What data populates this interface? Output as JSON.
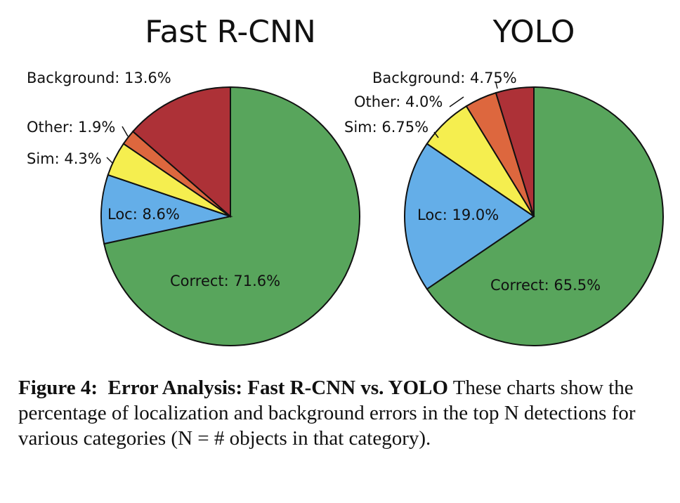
{
  "chart_data": [
    {
      "type": "pie",
      "title": "Fast R-CNN",
      "slices": [
        {
          "label": "Correct: 71.6%",
          "value": 71.6,
          "color": "#58a55c"
        },
        {
          "label": "Loc: 8.6%",
          "value": 8.6,
          "color": "#64aee8"
        },
        {
          "label": "Sim: 4.3%",
          "value": 4.3,
          "color": "#f5ee4f"
        },
        {
          "label": "Other: 1.9%",
          "value": 1.9,
          "color": "#dd673e"
        },
        {
          "label": "Background: 13.6%",
          "value": 13.6,
          "color": "#ad3137"
        }
      ]
    },
    {
      "type": "pie",
      "title": "YOLO",
      "slices": [
        {
          "label": "Correct: 65.5%",
          "value": 65.5,
          "color": "#58a55c"
        },
        {
          "label": "Loc: 19.0%",
          "value": 19.0,
          "color": "#64aee8"
        },
        {
          "label": "Sim: 6.75%",
          "value": 6.75,
          "color": "#f5ee4f"
        },
        {
          "label": "Other: 4.0%",
          "value": 4.0,
          "color": "#dd673e"
        },
        {
          "label": "Background: 4.75%",
          "value": 4.75,
          "color": "#ad3137"
        }
      ]
    }
  ],
  "caption": {
    "figure_label": "Figure 4:",
    "bold_title": "Error Analysis: Fast R-CNN vs. YOLO",
    "text": "These charts show the percentage of localization and background errors in the top N detections for various categories (N = # objects in that category)."
  }
}
